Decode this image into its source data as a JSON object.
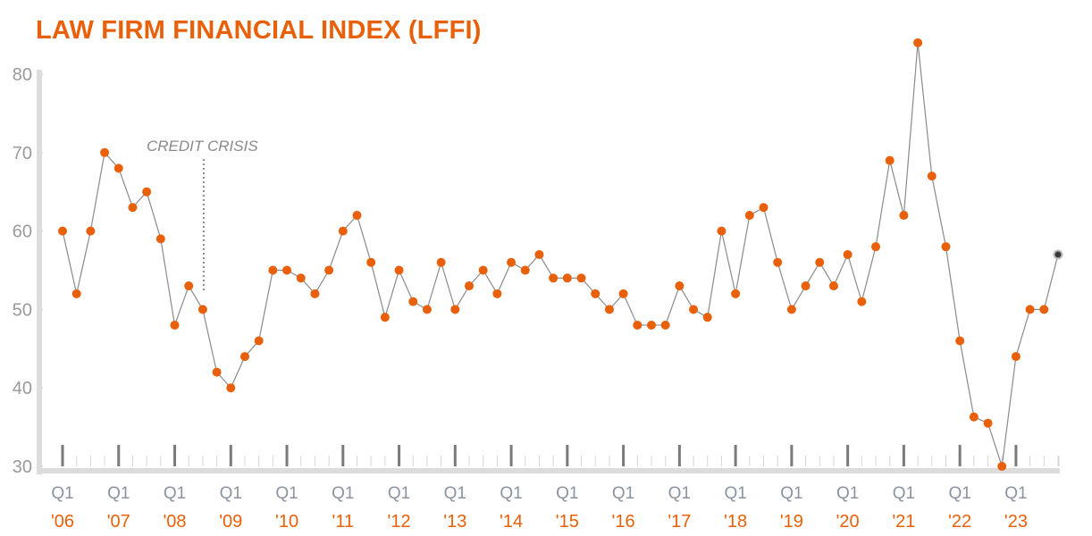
{
  "chart_data": {
    "type": "line",
    "title": "LAW FIRM FINANCIAL INDEX (LFFI)",
    "xlabel": "",
    "ylabel": "",
    "ylim": [
      30,
      80
    ],
    "yticks": [
      30,
      40,
      50,
      60,
      70,
      80
    ],
    "grid": false,
    "x_quarter_label": "Q1",
    "years": [
      "'06",
      "'07",
      "'08",
      "'09",
      "'10",
      "'11",
      "'12",
      "'13",
      "'14",
      "'15",
      "'16",
      "'17",
      "'18",
      "'19",
      "'20",
      "'21",
      "'22",
      "'23"
    ],
    "series": [
      {
        "name": "LFFI",
        "color": "#e8600a",
        "last_point_color": "#3a3a3a",
        "values": [
          60,
          52,
          60,
          70,
          68,
          63,
          65,
          59,
          48,
          53,
          50,
          42,
          40,
          44,
          46,
          55,
          55,
          54,
          52,
          55,
          60,
          62,
          56,
          49,
          55,
          51,
          50,
          56,
          50,
          53,
          55,
          52,
          56,
          55,
          57,
          54,
          54,
          54,
          52,
          50,
          52,
          48,
          48,
          48,
          53,
          50,
          49,
          60,
          52,
          62,
          63,
          56,
          50,
          53,
          56,
          53,
          57,
          51,
          58,
          69,
          62,
          84,
          67,
          58,
          46,
          36.3,
          35.5,
          30,
          44,
          50,
          50,
          57
        ]
      }
    ],
    "annotations": [
      {
        "text": "CREDIT CRISIS",
        "quarter_index": 10
      }
    ]
  }
}
